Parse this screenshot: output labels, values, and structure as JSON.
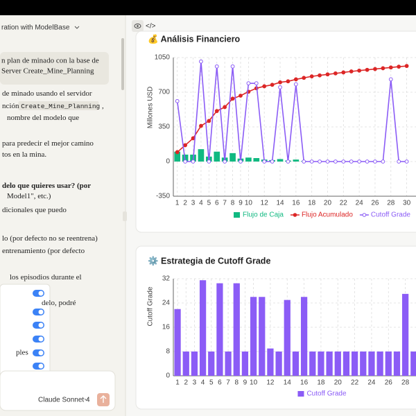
{
  "header": {
    "title": "ration with ModelBase"
  },
  "chat": {
    "user_message": [
      "n plan de minado con la base de",
      "Server Create_Mine_Planning"
    ],
    "lines": [
      {
        "text": "de minado usando el servidor"
      },
      {
        "text": "nción ",
        "code": "Create_Mine_Planning",
        "rest": " ,"
      },
      {
        "text": "nombre del modelo que"
      },
      {
        "text": "para predecir el mejor camino"
      },
      {
        "text": "tos en la mina."
      },
      {
        "text": "delo que quieres usar? (por",
        "bold": true
      },
      {
        "text": "Model1\", etc.)"
      },
      {
        "text": "dicionales que puedo"
      },
      {
        "text": "lo (por defecto no se reentrena)"
      },
      {
        "text": "entrenamiento (por defecto"
      },
      {
        "text": "los episodios durante el"
      },
      {
        "text": "delo, podré"
      }
    ],
    "settings_menu": {
      "item": "ples"
    },
    "model": "Claude Sonnet 4"
  },
  "chart_data": [
    {
      "type": "bar",
      "title": "💰 Análisis Financiero",
      "y_label": "Millones USD",
      "x": [
        1,
        2,
        3,
        4,
        5,
        6,
        7,
        8,
        9,
        10,
        11,
        12,
        13,
        14,
        15,
        16,
        17,
        18,
        19,
        20,
        21,
        22,
        23,
        24,
        25,
        26,
        27,
        28,
        29,
        30
      ],
      "xlim": [
        0.5,
        31
      ],
      "xticks": [
        1,
        2,
        3,
        4,
        5,
        6,
        7,
        8,
        9,
        10,
        12,
        14,
        16,
        18,
        20,
        22,
        24,
        26,
        28,
        30
      ],
      "ylim": [
        -350,
        1050
      ],
      "yticks": [
        -350,
        0,
        350,
        700,
        1050
      ],
      "grid": true,
      "legend": "bottom",
      "series": [
        {
          "name": "Flujo de Caja",
          "type": "bar",
          "color": "#10b981",
          "values": [
            100,
            70,
            70,
            125,
            50,
            100,
            40,
            85,
            30,
            40,
            35,
            20,
            15,
            25,
            10,
            20,
            5,
            3,
            2,
            2,
            1,
            1,
            1,
            1,
            0,
            0,
            0,
            0,
            0,
            0
          ]
        },
        {
          "name": "Flujo Acumulado",
          "type": "line",
          "marker": "filled",
          "color": "#dc2626",
          "values": [
            95,
            165,
            235,
            360,
            410,
            510,
            550,
            635,
            665,
            705,
            740,
            760,
            775,
            800,
            810,
            830,
            845,
            860,
            870,
            880,
            890,
            900,
            910,
            918,
            926,
            934,
            942,
            950,
            958,
            965
          ]
        },
        {
          "name": "Cutoff Grade",
          "type": "line",
          "marker": "open",
          "color": "#8b5cf6",
          "values": [
            610,
            0,
            0,
            1010,
            0,
            960,
            0,
            960,
            0,
            790,
            790,
            0,
            0,
            750,
            0,
            780,
            0,
            0,
            0,
            0,
            0,
            0,
            0,
            0,
            0,
            0,
            0,
            830,
            0,
            0
          ]
        }
      ]
    },
    {
      "type": "bar",
      "title": "⚙️ Estrategia de Cutoff Grade",
      "y_label": "Cutoff Grade",
      "x": [
        1,
        2,
        3,
        4,
        5,
        6,
        7,
        8,
        9,
        10,
        11,
        12,
        13,
        14,
        15,
        16,
        17,
        18,
        19,
        20,
        21,
        22,
        23,
        24,
        25,
        26,
        27,
        28,
        29
      ],
      "xlim": [
        0.5,
        29.1
      ],
      "xticks": [
        1,
        2,
        3,
        4,
        5,
        6,
        7,
        8,
        9,
        10,
        12,
        14,
        16,
        18,
        20,
        22,
        24,
        26,
        28
      ],
      "ylim": [
        0,
        32
      ],
      "yticks": [
        0,
        8,
        16,
        24,
        32
      ],
      "grid": true,
      "legend": "bottom",
      "series": [
        {
          "name": "Cutoff Grade",
          "type": "bar",
          "color": "#8b5cf6",
          "values": [
            22,
            8,
            8,
            31.5,
            8,
            30.5,
            8,
            30.5,
            8,
            26,
            26,
            9,
            8,
            25,
            8,
            26,
            8,
            8,
            8,
            8,
            8,
            8,
            8,
            8,
            8,
            8,
            8,
            27,
            8
          ]
        }
      ]
    }
  ]
}
